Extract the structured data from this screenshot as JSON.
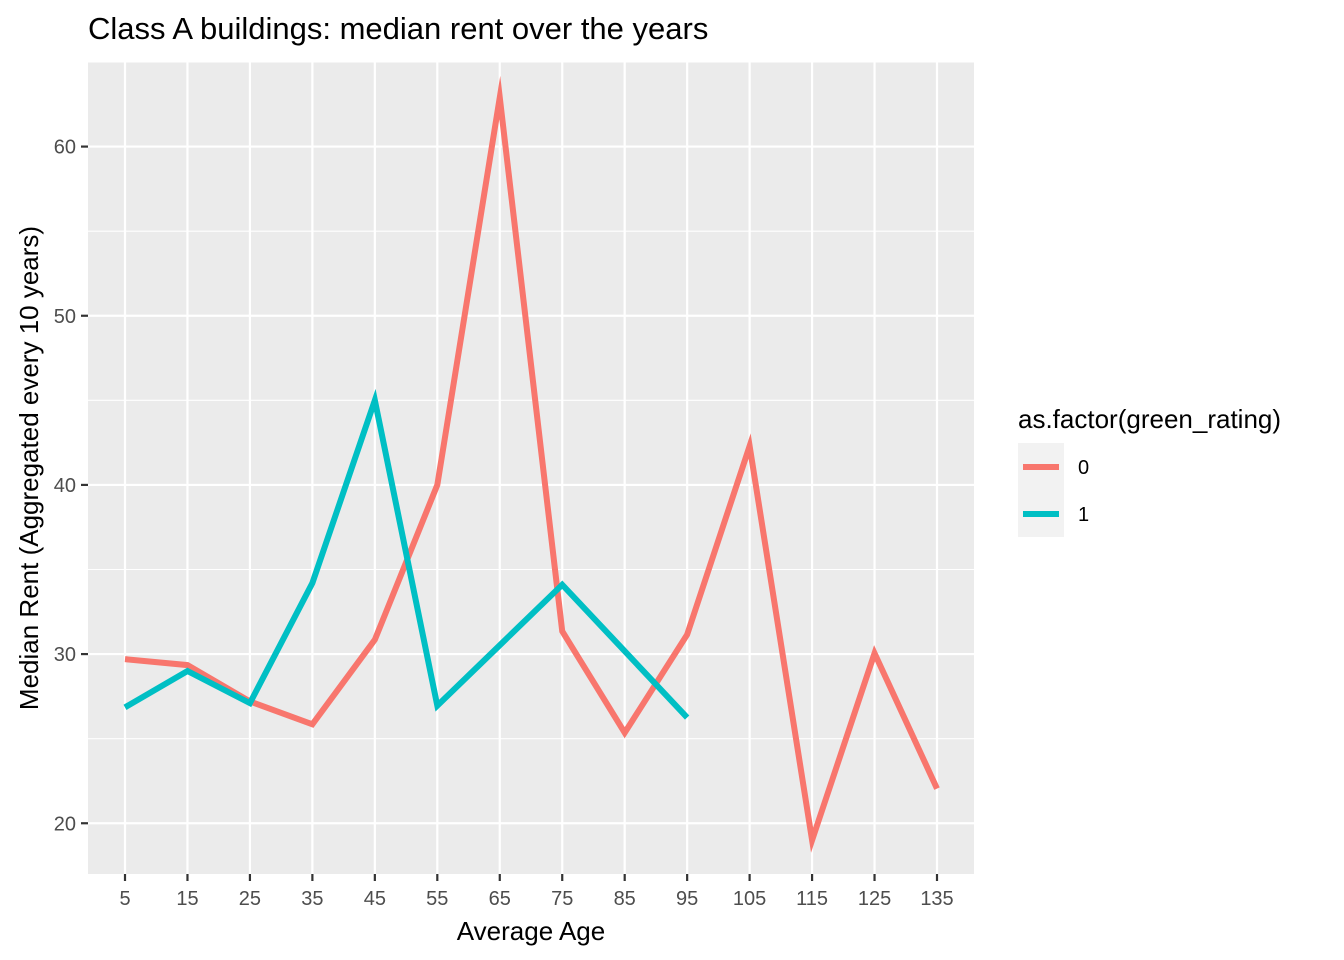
{
  "chart_data": {
    "type": "line",
    "title": "Class A buildings: median rent over the years",
    "xlabel": "Average Age",
    "ylabel": "Median Rent (Aggregated every 10 years)",
    "categories": [
      "5",
      "15",
      "25",
      "35",
      "45",
      "55",
      "65",
      "75",
      "85",
      "95",
      "105",
      "115",
      "125",
      "135"
    ],
    "y_ticks": [
      20,
      30,
      40,
      50,
      60
    ],
    "ylim": [
      17,
      65
    ],
    "grid": true,
    "legend": {
      "title": "as.factor(green_rating)",
      "position": "right"
    },
    "series": [
      {
        "name": "0",
        "color": "#F8766D",
        "values": [
          29.7,
          29.35,
          27.2,
          25.85,
          30.85,
          40.0,
          62.9,
          31.35,
          25.35,
          31.15,
          42.3,
          19.0,
          30.05,
          22.05
        ]
      },
      {
        "name": "1",
        "color": "#00BFC4",
        "values": [
          26.85,
          29.0,
          27.1,
          34.2,
          45.0,
          26.95,
          null,
          34.1,
          null,
          26.25,
          null,
          null,
          null,
          null
        ]
      }
    ]
  }
}
